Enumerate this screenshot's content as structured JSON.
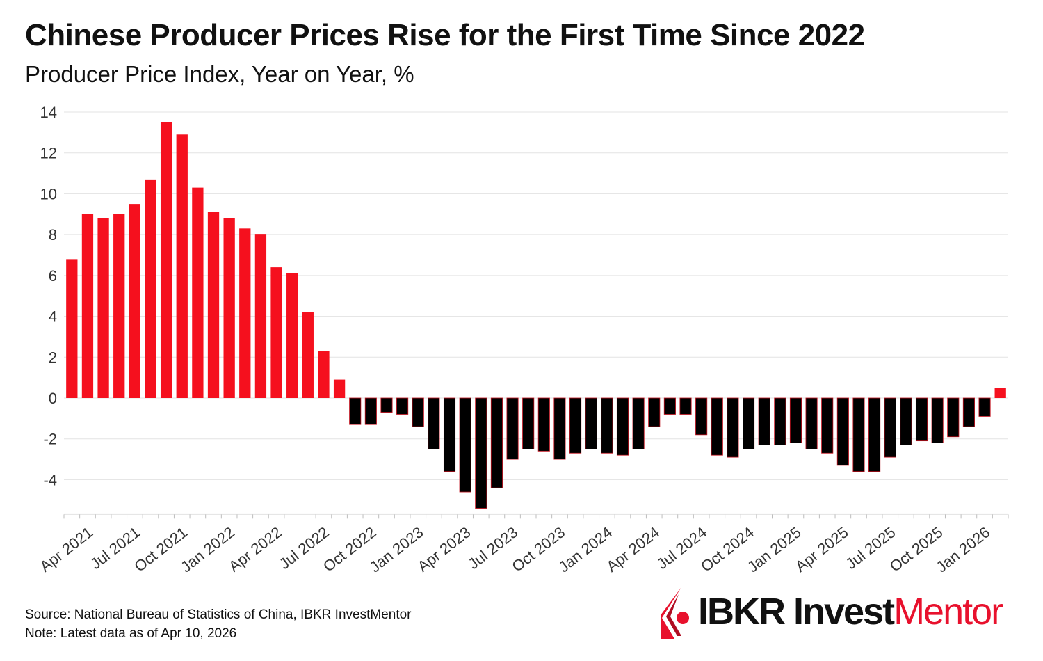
{
  "header": {
    "title": "Chinese Producer Prices Rise for the First Time Since 2022",
    "subtitle": "Producer Price Index, Year on Year, %"
  },
  "footer": {
    "source": "Source: National Bureau of Statistics of China, IBKR InvestMentor",
    "note": "Note: Latest data as of Apr 10, 2026"
  },
  "logo": {
    "brand": "IBKR Invest",
    "accent_word": "Mentor",
    "icon": "ibkr-flame-icon"
  },
  "colors": {
    "positive": "#f5101e",
    "negative": "#000000",
    "accent": "#e8112d"
  },
  "chart_data": {
    "type": "bar",
    "ylim": [
      -5.7,
      14
    ],
    "yticks": [
      14,
      12,
      10,
      8,
      6,
      4,
      2,
      0,
      -2,
      -4
    ],
    "grid": true,
    "x_tick_labels": [
      "Apr 2021",
      "Jul 2021",
      "Oct 2021",
      "Jan 2022",
      "Apr 2022",
      "Jul 2022",
      "Oct 2022",
      "Jan 2023",
      "Apr 2023",
      "Jul 2023",
      "Oct 2023",
      "Jan 2024",
      "Apr 2024",
      "Jul 2024",
      "Oct 2024",
      "Jan 2025",
      "Apr 2025",
      "Jul 2025",
      "Oct 2025",
      "Jan 2026"
    ],
    "categories": [
      "2021-04",
      "2021-05",
      "2021-06",
      "2021-07",
      "2021-08",
      "2021-09",
      "2021-10",
      "2021-11",
      "2021-12",
      "2022-01",
      "2022-02",
      "2022-03",
      "2022-04",
      "2022-05",
      "2022-06",
      "2022-07",
      "2022-08",
      "2022-09",
      "2022-10",
      "2022-11",
      "2022-12",
      "2023-01",
      "2023-02",
      "2023-03",
      "2023-04",
      "2023-05",
      "2023-06",
      "2023-07",
      "2023-08",
      "2023-09",
      "2023-10",
      "2023-11",
      "2023-12",
      "2024-01",
      "2024-02",
      "2024-03",
      "2024-04",
      "2024-05",
      "2024-06",
      "2024-07",
      "2024-08",
      "2024-09",
      "2024-10",
      "2024-11",
      "2024-12",
      "2025-01",
      "2025-02",
      "2025-03",
      "2025-04",
      "2025-05",
      "2025-06",
      "2025-07",
      "2025-08",
      "2025-09",
      "2025-10",
      "2025-11",
      "2025-12",
      "2026-01",
      "2026-02",
      "2026-03"
    ],
    "values": [
      6.8,
      9.0,
      8.8,
      9.0,
      9.5,
      10.7,
      13.5,
      12.9,
      10.3,
      9.1,
      8.8,
      8.3,
      8.0,
      6.4,
      6.1,
      4.2,
      2.3,
      0.9,
      -1.3,
      -1.3,
      -0.7,
      -0.8,
      -1.4,
      -2.5,
      -3.6,
      -4.6,
      -5.4,
      -4.4,
      -3.0,
      -2.5,
      -2.6,
      -3.0,
      -2.7,
      -2.5,
      -2.7,
      -2.8,
      -2.5,
      -1.4,
      -0.8,
      -0.8,
      -1.8,
      -2.8,
      -2.9,
      -2.5,
      -2.3,
      -2.3,
      -2.2,
      -2.5,
      -2.7,
      -3.3,
      -3.6,
      -3.6,
      -2.9,
      -2.3,
      -2.1,
      -2.2,
      -1.9,
      -1.4,
      -0.9,
      0.5
    ]
  }
}
